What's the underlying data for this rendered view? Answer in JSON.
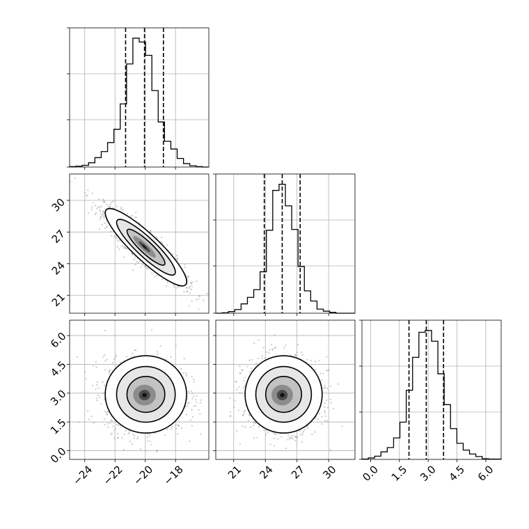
{
  "chart_data": {
    "type": "corner",
    "parameters": [
      {
        "id": "p1",
        "range": [
          -25.0,
          -15.8
        ],
        "ticks": [
          -24,
          -22,
          -20,
          -18
        ],
        "tick_labels": [
          "−24",
          "−22",
          "−20",
          "−18"
        ],
        "quantiles": [
          -21.3,
          -20.05,
          -18.8
        ]
      },
      {
        "id": "p2",
        "range": [
          19.3,
          32.5
        ],
        "ticks": [
          21,
          24,
          27,
          30
        ],
        "tick_labels": [
          "21",
          "24",
          "27",
          "30"
        ],
        "quantiles": [
          23.9,
          25.6,
          27.3
        ]
      },
      {
        "id": "p3",
        "range": [
          -0.45,
          6.8
        ],
        "ticks": [
          0.0,
          1.5,
          3.0,
          4.5,
          6.0
        ],
        "tick_labels": [
          "0.0",
          "1.5",
          "3.0",
          "4.5",
          "6.0"
        ],
        "quantiles": [
          2.0,
          2.9,
          3.8
        ]
      }
    ],
    "histograms": [
      {
        "param": "p1",
        "bins": [
          -25.0,
          -15.8
        ],
        "counts": [
          1,
          2,
          4,
          10,
          22,
          36,
          57,
          88,
          147,
          240,
          300,
          291,
          260,
          178,
          105,
          60,
          42,
          20,
          8,
          3,
          1,
          0
        ]
      },
      {
        "param": "p2",
        "bins": [
          19.3,
          32.5
        ],
        "counts": [
          0,
          1,
          4,
          9,
          23,
          39,
          58,
          102,
          204,
          302,
          317,
          264,
          206,
          115,
          55,
          30,
          10,
          5,
          2,
          0,
          0,
          0
        ]
      },
      {
        "param": "p3",
        "bins": [
          -0.45,
          6.8
        ],
        "counts": [
          1,
          4,
          9,
          21,
          33,
          60,
          104,
          193,
          285,
          355,
          360,
          330,
          239,
          153,
          86,
          45,
          26,
          15,
          8,
          2,
          1,
          1
        ]
      }
    ],
    "pairs": [
      {
        "x": "p1",
        "y": "p2",
        "center": [
          -20.05,
          25.6
        ],
        "correlation": -0.9,
        "contours": 3
      },
      {
        "x": "p1",
        "y": "p3",
        "center": [
          -20.05,
          2.9
        ],
        "correlation": 0.0,
        "contours": 3
      },
      {
        "x": "p2",
        "y": "p3",
        "center": [
          25.6,
          2.9
        ],
        "correlation": 0.0,
        "contours": 3
      }
    ],
    "grid": true,
    "quantile_lines": "dashed"
  }
}
